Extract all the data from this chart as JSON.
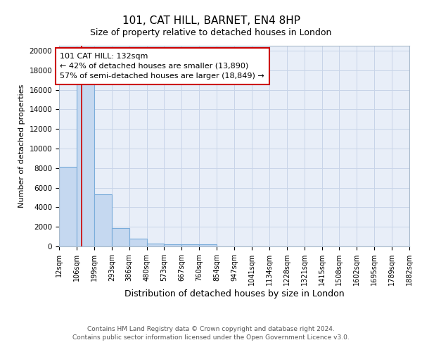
{
  "title1": "101, CAT HILL, BARNET, EN4 8HP",
  "title2": "Size of property relative to detached houses in London",
  "xlabel": "Distribution of detached houses by size in London",
  "ylabel": "Number of detached properties",
  "bar_edges": [
    12,
    106,
    199,
    293,
    386,
    480,
    573,
    667,
    760,
    854,
    947,
    1041,
    1134,
    1228,
    1321,
    1415,
    1508,
    1602,
    1695,
    1789,
    1882
  ],
  "bar_heights": [
    8100,
    16600,
    5300,
    1850,
    800,
    300,
    230,
    200,
    185,
    0,
    0,
    0,
    0,
    0,
    0,
    0,
    0,
    0,
    0,
    0
  ],
  "bar_color": "#c5d8f0",
  "bar_edge_color": "#7aacda",
  "grid_color": "#c8d4e8",
  "bg_color": "#e8eef8",
  "red_line_x": 132,
  "annotation_text": "101 CAT HILL: 132sqm\n← 42% of detached houses are smaller (13,890)\n57% of semi-detached houses are larger (18,849) →",
  "annotation_box_color": "#ffffff",
  "annotation_border_color": "#cc0000",
  "footer1": "Contains HM Land Registry data © Crown copyright and database right 2024.",
  "footer2": "Contains public sector information licensed under the Open Government Licence v3.0.",
  "ylim": [
    0,
    20500
  ],
  "tick_labels": [
    "12sqm",
    "106sqm",
    "199sqm",
    "293sqm",
    "386sqm",
    "480sqm",
    "573sqm",
    "667sqm",
    "760sqm",
    "854sqm",
    "947sqm",
    "1041sqm",
    "1134sqm",
    "1228sqm",
    "1321sqm",
    "1415sqm",
    "1508sqm",
    "1602sqm",
    "1695sqm",
    "1789sqm",
    "1882sqm"
  ]
}
